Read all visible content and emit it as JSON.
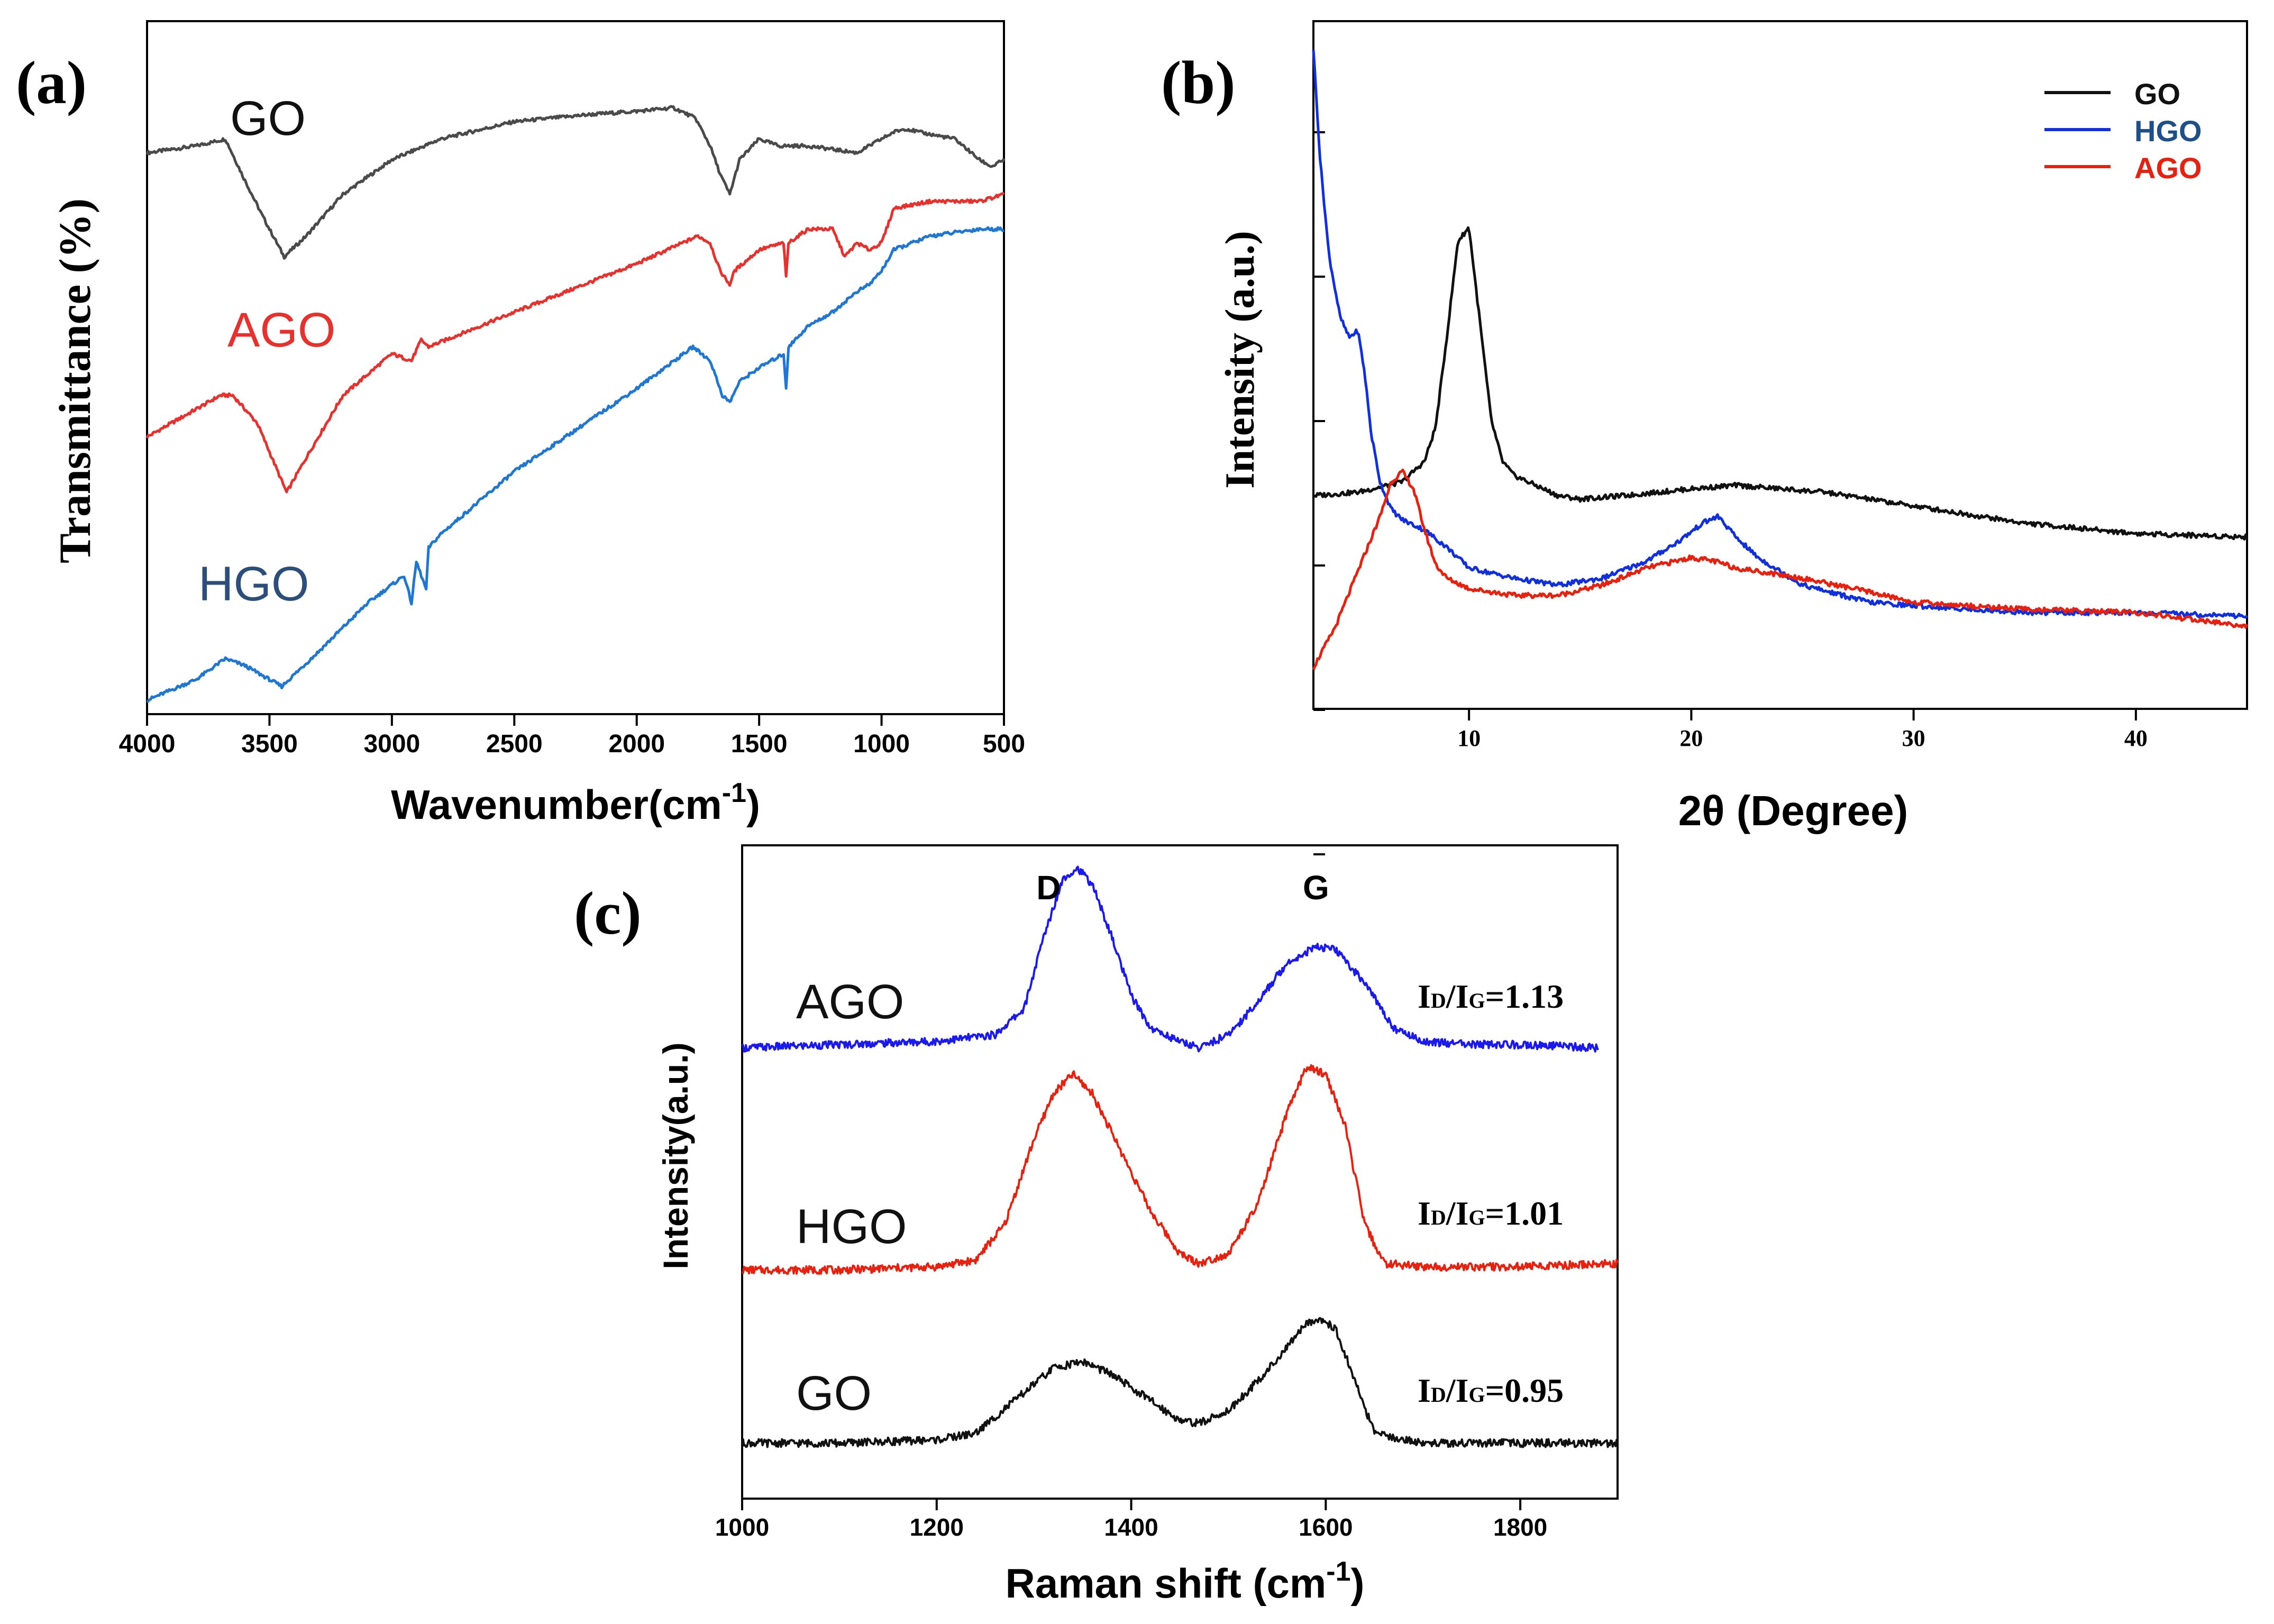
{
  "figure": {
    "panels": {
      "a": {
        "label": "(a)"
      },
      "b": {
        "label": "(b)"
      },
      "c": {
        "label": "(c)"
      }
    }
  },
  "chart_data": [
    {
      "panel": "a",
      "type": "line",
      "xlabel": "Wavenumber(cm-1)",
      "xlabel_main": "Wavenumber(cm",
      "xlabel_sup": "-1",
      "xlabel_close": ")",
      "ylabel": "Transmittance (%)",
      "xlim": [
        4000,
        500
      ],
      "ylim": [
        0,
        100
      ],
      "x_ticks": [
        4000,
        3500,
        3000,
        2500,
        2000,
        1500,
        1000,
        500
      ],
      "series": [
        {
          "name": "GO",
          "color": "#4a4a4a",
          "x": [
            4000,
            3800,
            3680,
            3600,
            3530,
            3440,
            3350,
            3200,
            3000,
            2800,
            2500,
            2200,
            2000,
            1850,
            1760,
            1700,
            1660,
            1620,
            1580,
            1500,
            1420,
            1300,
            1200,
            1100,
            1050,
            1000,
            950,
            900,
            850,
            700,
            600,
            550,
            500
          ],
          "y": [
            81,
            82,
            83,
            77,
            72,
            66,
            69,
            75,
            80,
            83,
            85.5,
            86.5,
            87,
            87.5,
            86,
            82,
            78,
            75,
            80,
            83,
            82,
            82,
            81.5,
            81,
            82,
            83,
            84,
            84.5,
            84,
            83,
            80,
            79,
            80
          ]
        },
        {
          "name": "AGO",
          "color": "#e8312d",
          "x": [
            4000,
            3800,
            3700,
            3650,
            3550,
            3430,
            3350,
            3200,
            3000,
            2920,
            2880,
            2850,
            2500,
            2000,
            1750,
            1700,
            1660,
            1620,
            1600,
            1500,
            1400,
            1390,
            1380,
            1300,
            1200,
            1150,
            1100,
            1050,
            1000,
            950,
            800,
            600,
            500
          ],
          "y": [
            40,
            44,
            46,
            46,
            42,
            32,
            37,
            46,
            52,
            51,
            54,
            53,
            58,
            65,
            69,
            68,
            64,
            62,
            64,
            67,
            68,
            63,
            68,
            70,
            70,
            66,
            68,
            67,
            68,
            73,
            74,
            74,
            75
          ]
        },
        {
          "name": "HGO",
          "color": "#1f77d4",
          "x": [
            4000,
            3800,
            3680,
            3600,
            3450,
            3300,
            3100,
            2950,
            2920,
            2900,
            2860,
            2850,
            2800,
            2500,
            2000,
            1770,
            1700,
            1650,
            1620,
            1580,
            1500,
            1400,
            1390,
            1380,
            1300,
            1200,
            1100,
            1050,
            1000,
            950,
            800,
            600,
            500
          ],
          "y": [
            2,
            5,
            8,
            7,
            4,
            9,
            16,
            20,
            16,
            22,
            18,
            24,
            26,
            35,
            47,
            53,
            51,
            46,
            45,
            48,
            50,
            52,
            47,
            53,
            56,
            58,
            61,
            62,
            64,
            67,
            69,
            70,
            70
          ]
        }
      ],
      "annotations": [
        "GO",
        "AGO",
        "HGO"
      ]
    },
    {
      "panel": "b",
      "type": "line",
      "xlabel": "2θ (Degree)",
      "ylabel": "Intensity (a.u.)",
      "xlim": [
        3,
        45
      ],
      "ylim": [
        0,
        100
      ],
      "x_ticks": [
        10,
        20,
        30,
        40
      ],
      "legend": {
        "position": "top-right",
        "entries": [
          "GO",
          "HGO",
          "AGO"
        ]
      },
      "series": [
        {
          "name": "GO",
          "color": "#111111",
          "x": [
            3,
            5,
            7,
            8,
            8.5,
            9,
            9.5,
            10,
            10.5,
            11,
            11.5,
            12,
            13,
            14,
            15,
            17,
            20,
            22,
            24,
            26,
            30,
            35,
            40,
            45
          ],
          "y": [
            31,
            31.5,
            33,
            36,
            41,
            54,
            68,
            70,
            56,
            42,
            36,
            34,
            32.5,
            31,
            30.5,
            31,
            32,
            32.5,
            32,
            31.5,
            29.5,
            27,
            25.5,
            25
          ]
        },
        {
          "name": "HGO",
          "color": "#1030e0",
          "x": [
            3,
            3.3,
            3.7,
            4.2,
            4.6,
            5,
            5.3,
            5.6,
            6,
            6.5,
            7,
            8,
            9,
            10,
            12,
            14,
            16,
            18,
            19.5,
            20.5,
            21.2,
            22,
            23,
            25,
            28,
            30,
            35,
            40,
            45
          ],
          "y": [
            96,
            80,
            66,
            57,
            54,
            55,
            49,
            40,
            33,
            29,
            27.5,
            26,
            23.5,
            20.5,
            19,
            18,
            19,
            21.5,
            24.5,
            27,
            28,
            25,
            22,
            18,
            15.5,
            15,
            14,
            14,
            13.5
          ]
        },
        {
          "name": "AGO",
          "color": "#e8200e",
          "x": [
            3,
            4,
            5,
            6,
            6.5,
            7,
            7.5,
            8,
            8.5,
            9,
            10,
            12,
            14,
            16,
            18,
            20,
            21,
            22,
            25,
            28,
            30,
            35,
            40,
            45
          ],
          "y": [
            6,
            12,
            20,
            28,
            33,
            34.5,
            32,
            26,
            21,
            19,
            17.5,
            16.5,
            16.5,
            18,
            20.5,
            22,
            21.5,
            20.5,
            19,
            17,
            15.5,
            14.5,
            14,
            12
          ]
        }
      ]
    },
    {
      "panel": "c",
      "type": "line",
      "xlabel": "Raman shift (cm-1)",
      "xlabel_main": "Raman shift (cm",
      "xlabel_sup": "-1",
      "xlabel_close": ")",
      "ylabel": "Intensity(a.u.)",
      "xlim": [
        1000,
        1900
      ],
      "ylim": [
        0,
        100
      ],
      "x_ticks": [
        1000,
        1200,
        1400,
        1600,
        1800
      ],
      "peaks": [
        {
          "label": "D",
          "x": 1345
        },
        {
          "label": "G",
          "x": 1590
        }
      ],
      "series": [
        {
          "name": "AGO",
          "color": "#1a1aee",
          "ratio_text": "1.13",
          "x": [
            1000,
            1100,
            1200,
            1260,
            1290,
            1310,
            1330,
            1345,
            1360,
            1380,
            1400,
            1420,
            1450,
            1470,
            1500,
            1530,
            1560,
            1590,
            1610,
            1640,
            1670,
            1700,
            1750,
            1800,
            1880
          ],
          "y": [
            69,
            69.5,
            70,
            71,
            75,
            86,
            95,
            96.5,
            94,
            86,
            77,
            72,
            70,
            69,
            71,
            76,
            82,
            84.5,
            84,
            79,
            72,
            70,
            69.5,
            69.5,
            69
          ]
        },
        {
          "name": "HGO",
          "color": "#e8200e",
          "ratio_text": "1.01",
          "x": [
            1000,
            1100,
            1200,
            1240,
            1270,
            1300,
            1320,
            1340,
            1360,
            1390,
            1420,
            1450,
            1470,
            1500,
            1530,
            1560,
            1580,
            1600,
            1620,
            1640,
            1660,
            1700,
            1800,
            1900
          ],
          "y": [
            35,
            35,
            35.5,
            36.5,
            42,
            55,
            62,
            65,
            62,
            53,
            44,
            37.5,
            36,
            37.5,
            45,
            59,
            66,
            65,
            57,
            42,
            36,
            35.5,
            35.5,
            36
          ]
        },
        {
          "name": "GO",
          "color": "#111111",
          "ratio_text": "0.95",
          "x": [
            1000,
            1100,
            1200,
            1240,
            1280,
            1320,
            1350,
            1380,
            1420,
            1450,
            1470,
            1500,
            1530,
            1560,
            1580,
            1595,
            1610,
            1630,
            1650,
            1700,
            1800,
            1900
          ],
          "y": [
            8.5,
            8.5,
            9,
            10,
            15,
            20,
            21,
            19,
            15,
            12,
            11.5,
            13.5,
            18,
            23,
            27,
            27.5,
            26,
            18,
            10,
            8.5,
            8.5,
            8.5
          ]
        }
      ]
    }
  ],
  "raman_ratio_prefix": {
    "I1": "I",
    "sub1": "D",
    "slash": "/I",
    "sub2": "G",
    "eq": "="
  }
}
